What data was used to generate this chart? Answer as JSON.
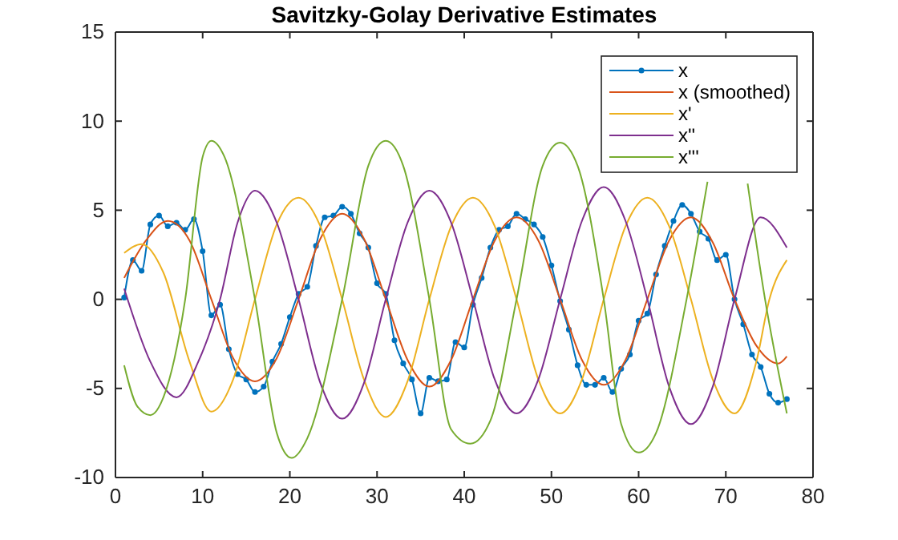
{
  "chart_data": {
    "type": "line",
    "title": "Savitzky-Golay Derivative Estimates",
    "xlim": [
      0,
      80
    ],
    "xticks": [
      0,
      10,
      20,
      30,
      40,
      50,
      60,
      70,
      80
    ],
    "ylim": [
      -10,
      15
    ],
    "yticks": [
      -10,
      -5,
      0,
      5,
      10,
      15
    ],
    "grid": false,
    "legend": "top right",
    "series": [
      {
        "name": "x",
        "color": "#0072bd",
        "marker": "circle",
        "x": [
          1,
          2,
          3,
          4,
          5,
          6,
          7,
          8,
          9,
          10,
          11,
          12,
          13,
          14,
          15,
          16,
          17,
          18,
          19,
          20,
          21,
          22,
          23,
          24,
          25,
          26,
          27,
          28,
          29,
          30,
          31,
          32,
          33,
          34,
          35,
          36,
          37,
          38,
          39,
          40,
          41,
          42,
          43,
          44,
          45,
          46,
          47,
          48,
          49,
          50,
          51,
          52,
          53,
          54,
          55,
          56,
          57,
          58,
          59,
          60,
          61,
          62,
          63,
          64,
          65,
          66,
          67,
          68,
          69,
          70,
          71,
          72,
          73,
          74,
          75,
          76,
          77
        ],
        "values": [
          0.1,
          2.2,
          1.6,
          4.2,
          4.7,
          4.1,
          4.3,
          3.9,
          4.5,
          2.7,
          -0.9,
          -0.3,
          -2.8,
          -4.2,
          -4.5,
          -5.2,
          -4.9,
          -3.5,
          -2.5,
          -1.0,
          0.3,
          0.7,
          3.0,
          4.6,
          4.7,
          5.2,
          4.8,
          3.7,
          2.9,
          0.9,
          0.3,
          -2.3,
          -3.6,
          -4.5,
          -6.4,
          -4.4,
          -4.6,
          -4.5,
          -2.4,
          -2.7,
          -0.3,
          1.2,
          2.9,
          3.9,
          4.1,
          4.8,
          4.5,
          4.2,
          3.5,
          1.9,
          -0.1,
          -1.7,
          -3.7,
          -4.8,
          -4.8,
          -4.4,
          -5.2,
          -3.9,
          -3.1,
          -1.2,
          -0.8,
          1.4,
          3.0,
          4.4,
          5.3,
          4.8,
          3.8,
          3.4,
          2.2,
          2.5,
          0.0,
          -1.4,
          -3.1,
          -3.8,
          -5.3,
          -5.8,
          -5.6
        ]
      },
      {
        "name": "x (smoothed)",
        "color": "#d95319",
        "marker": "none",
        "x": [
          1,
          3.5,
          6,
          8.5,
          11,
          13.5,
          16,
          18.5,
          21,
          23.5,
          26,
          28.5,
          31,
          33.5,
          36,
          38.5,
          41,
          43.5,
          46,
          48.5,
          51,
          53.5,
          56,
          58.5,
          61,
          63.5,
          66,
          68.5,
          71,
          73.5,
          76,
          77
        ],
        "values": [
          1.2,
          3.3,
          4.4,
          3.3,
          0,
          -3.3,
          -4.6,
          -3.3,
          0,
          3.4,
          4.8,
          3.4,
          0,
          -3.4,
          -4.9,
          -3.4,
          0,
          3.3,
          4.6,
          3.3,
          0,
          -3.4,
          -4.8,
          -3.4,
          0,
          3.3,
          4.6,
          3.2,
          0,
          -2.6,
          -3.6,
          -3.2
        ]
      },
      {
        "name": "x'",
        "color": "#edb120",
        "marker": "none",
        "x": [
          1,
          3,
          5.5,
          8.5,
          11,
          13.5,
          16,
          18.5,
          21,
          23.5,
          26,
          28.5,
          31,
          33.5,
          36,
          38.5,
          41,
          43.5,
          46,
          48.5,
          51,
          53.5,
          56,
          58.5,
          61,
          63.5,
          66,
          68.5,
          71,
          73.5,
          75,
          77
        ],
        "values": [
          2.6,
          3.1,
          1.5,
          -3.5,
          -6.3,
          -4.5,
          0,
          4.2,
          5.7,
          4.1,
          0,
          -4.5,
          -6.6,
          -4.6,
          0,
          4.1,
          5.7,
          4.1,
          0,
          -4.5,
          -6.4,
          -4.5,
          0,
          4.1,
          5.7,
          4.1,
          0,
          -4.5,
          -6.4,
          -3.5,
          0,
          2.2
        ]
      },
      {
        "name": "x''",
        "color": "#7e2f8e",
        "marker": "none",
        "x": [
          1,
          4,
          7,
          9.5,
          12,
          14,
          16,
          18.5,
          21,
          23.5,
          26,
          28.5,
          31,
          33.5,
          36,
          38.5,
          41,
          43.5,
          46,
          48.5,
          51,
          53.5,
          56,
          58.5,
          61,
          63.5,
          66,
          68.5,
          71,
          74,
          77
        ],
        "values": [
          0.6,
          -3.5,
          -5.5,
          -3.5,
          0,
          4.3,
          6.1,
          4.3,
          0,
          -4.7,
          -6.7,
          -4.7,
          0,
          4.3,
          6.1,
          4.3,
          0,
          -4.5,
          -6.4,
          -4.5,
          0,
          4.4,
          6.3,
          4.4,
          0,
          -4.9,
          -7.0,
          -4.9,
          0,
          4.6,
          2.9
        ]
      },
      {
        "name": "x'''",
        "color": "#77ac30",
        "marker": "none",
        "x": [
          1,
          2.5,
          4,
          5.5,
          8,
          10,
          11,
          12.5,
          16,
          18.5,
          20.2,
          22,
          26,
          29,
          31,
          33,
          36,
          38.5,
          40.7,
          43,
          46,
          49,
          51,
          53,
          56,
          58,
          60,
          62,
          65.5,
          67.9,
          70,
          72.5,
          74.5,
          77
        ],
        "values": [
          -3.7,
          -6.0,
          -6.5,
          -5.5,
          0,
          8.0,
          8.9,
          8.0,
          0,
          -7.5,
          -8.9,
          -7.8,
          0,
          7.5,
          8.9,
          7.5,
          0,
          -7.3,
          -8.1,
          -6.8,
          0,
          7.5,
          8.8,
          7.5,
          0,
          -7.0,
          -8.6,
          -7.5,
          0,
          6.6,
          null,
          6.5,
          0,
          -6.4
        ]
      }
    ]
  }
}
